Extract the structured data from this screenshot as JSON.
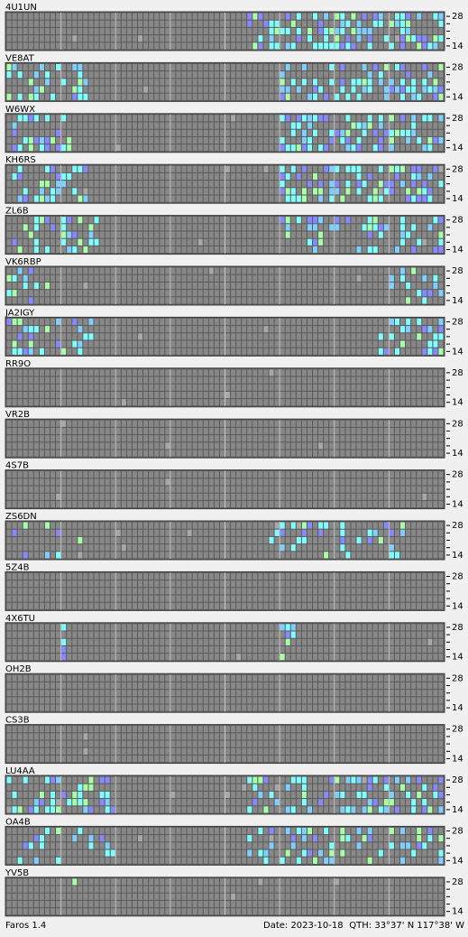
{
  "stations": [
    "4U1UN",
    "VE8AT",
    "W6WX",
    "KH6RS",
    "ZL6B",
    "VK6RBP",
    "JA2IGY",
    "RR9O",
    "VR2B",
    "4S7B",
    "ZS6DN",
    "5Z4B",
    "4X6TU",
    "OH2B",
    "CS3B",
    "LU4AA",
    "OA4B",
    "YV5B"
  ],
  "band_labels": {
    "top": "28",
    "bottom": "14"
  },
  "footer": {
    "app": "Faros 1.4",
    "date": "Date: 2023-10-18",
    "qth": "QTH: 33°37' N  117°38' W"
  }
}
